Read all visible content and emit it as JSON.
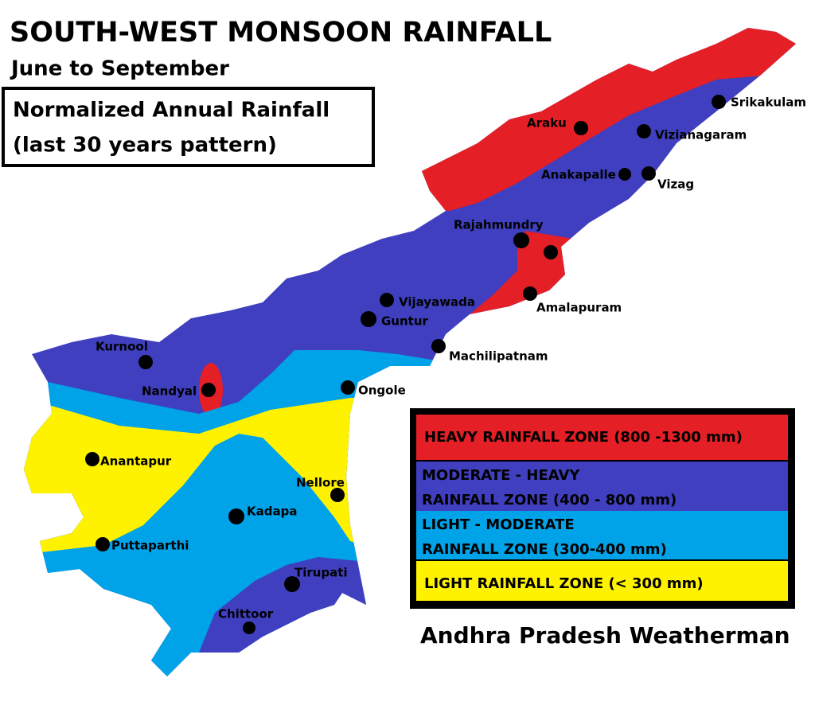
{
  "header": {
    "title": "SOUTH-WEST MONSOON RAINFALL",
    "subtitle": "June to September"
  },
  "note": {
    "lines": [
      "Normalized Annual Rainfall",
      "(last 30 years pattern)"
    ]
  },
  "cities": [
    {
      "label": "Srikakulam"
    },
    {
      "label": "Araku"
    },
    {
      "label": "Vizianagaram"
    },
    {
      "label": "Anakapalle"
    },
    {
      "label": "Vizag"
    },
    {
      "label": "Rajahmundry"
    },
    {
      "label": "Amalapuram"
    },
    {
      "label": "Vijayawada"
    },
    {
      "label": "Guntur"
    },
    {
      "label": "Machilipatnam"
    },
    {
      "label": "Kurnool"
    },
    {
      "label": "Nandyal"
    },
    {
      "label": "Ongole"
    },
    {
      "label": "Anantapur"
    },
    {
      "label": "Nellore"
    },
    {
      "label": "Kadapa"
    },
    {
      "label": "Puttaparthi"
    },
    {
      "label": "Tirupati"
    },
    {
      "label": "Chittoor"
    }
  ],
  "legend": {
    "items": [
      {
        "lines": [
          "HEAVY RAINFALL ZONE (800 -1300 mm)"
        ],
        "color": "#e41f26"
      },
      {
        "lines": [
          "MODERATE - HEAVY",
          "RAINFALL ZONE (400 - 800 mm)"
        ],
        "color": "#3f3fbf"
      },
      {
        "lines": [
          "LIGHT - MODERATE",
          "RAINFALL ZONE (300-400 mm)"
        ],
        "color": "#00a2e8"
      },
      {
        "lines": [
          "LIGHT RAINFALL ZONE (< 300 mm)"
        ],
        "color": "#fff200"
      }
    ]
  },
  "credit": "Andhra Pradesh Weatherman"
}
